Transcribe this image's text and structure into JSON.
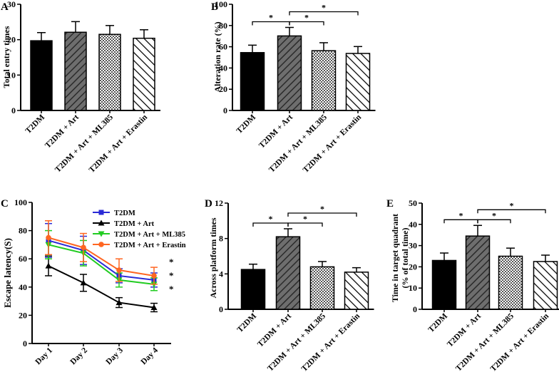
{
  "panels": [
    {
      "id": "A",
      "letter": "A",
      "chart_data": {
        "type": "bar",
        "ylabel": "Total entry times",
        "ylim": [
          0,
          30
        ],
        "yticks": [
          0,
          10,
          20,
          30
        ],
        "categories": [
          "T2DM",
          "T2DM + Art",
          "T2DM + Art + ML385",
          "T2DM + Art + Erastin"
        ],
        "values": [
          19.7,
          22.1,
          21.5,
          20.4
        ],
        "errors": [
          2.3,
          3.0,
          2.5,
          2.4
        ],
        "significance": []
      }
    },
    {
      "id": "B",
      "letter": "B",
      "chart_data": {
        "type": "bar",
        "ylabel": "Alteration rate (%)",
        "ylim": [
          0,
          100
        ],
        "yticks": [
          0,
          20,
          40,
          60,
          80,
          100
        ],
        "categories": [
          "T2DM",
          "T2DM + Art",
          "T2DM + Art + ML385",
          "T2DM + Art + Erastin"
        ],
        "values": [
          54.5,
          70.2,
          56.3,
          53.7
        ],
        "errors": [
          7.0,
          8.0,
          7.5,
          6.5
        ],
        "significance": [
          {
            "from": 0,
            "to": 1,
            "label": "*",
            "level": 1
          },
          {
            "from": 1,
            "to": 2,
            "label": "*",
            "level": 1
          },
          {
            "from": 1,
            "to": 3,
            "label": "*",
            "level": 2
          }
        ]
      }
    },
    {
      "id": "C",
      "letter": "C",
      "chart_data": {
        "type": "line",
        "ylabel": "Escape latency(S)",
        "ylim": [
          0,
          100
        ],
        "yticks": [
          0,
          20,
          40,
          60,
          80,
          100
        ],
        "categories": [
          "Day 1",
          "Day 2",
          "Day 3",
          "Day 4"
        ],
        "legend_position": "top-right",
        "series": [
          {
            "name": "T2DM",
            "color": "#2a2ad6",
            "marker": "square",
            "values": [
              73,
              66,
              48,
              45
            ],
            "errors": [
              12,
              10,
              5,
              5
            ],
            "end_labels": [
              ""
            ]
          },
          {
            "name": "T2DM + Art",
            "color": "#000000",
            "marker": "triangle-up",
            "values": [
              55,
              43,
              29,
              25.5
            ],
            "errors": [
              7,
              6,
              3.5,
              3
            ],
            "end_labels": [
              ""
            ]
          },
          {
            "name": "T2DM + Art + ML385",
            "color": "#22cc22",
            "marker": "triangle-down",
            "values": [
              70,
              64,
              45,
              42
            ],
            "errors": [
              10,
              9,
              5,
              4.5
            ],
            "end_labels": [
              "*"
            ]
          },
          {
            "name": "T2DM + Art + Erastin",
            "color": "#ff6622",
            "marker": "circle",
            "values": [
              75,
              68,
              52,
              48
            ],
            "errors": [
              12,
              10,
              8,
              6
            ],
            "end_labels": [
              "*"
            ]
          }
        ],
        "end_annotations": [
          "*",
          "*",
          "*"
        ]
      }
    },
    {
      "id": "D",
      "letter": "D",
      "chart_data": {
        "type": "bar",
        "ylabel": "Across platform times",
        "ylim": [
          0,
          12
        ],
        "yticks": [
          0,
          4,
          8,
          12
        ],
        "categories": [
          "T2DM",
          "T2DM + Art",
          "T2DM + Art + ML385",
          "T2DM + Art + Erastin"
        ],
        "values": [
          4.5,
          8.2,
          4.8,
          4.2
        ],
        "errors": [
          0.6,
          0.9,
          0.6,
          0.5
        ],
        "significance": [
          {
            "from": 0,
            "to": 1,
            "label": "*",
            "level": 1
          },
          {
            "from": 1,
            "to": 2,
            "label": "*",
            "level": 1
          },
          {
            "from": 1,
            "to": 3,
            "label": "*",
            "level": 2
          }
        ]
      }
    },
    {
      "id": "E",
      "letter": "E",
      "chart_data": {
        "type": "bar",
        "ylabel": "Time in target quadrant",
        "ylabel2": "(% of total time)",
        "ylim": [
          0,
          50
        ],
        "yticks": [
          0,
          10,
          20,
          30,
          40,
          50
        ],
        "categories": [
          "T2DM",
          "T2DM + Art",
          "T2DM + Art + ML385",
          "T2DM + Art + Erastin"
        ],
        "values": [
          23,
          34.5,
          25,
          22.5
        ],
        "errors": [
          3.5,
          5,
          3.8,
          3
        ],
        "significance": [
          {
            "from": 0,
            "to": 1,
            "label": "*",
            "level": 1
          },
          {
            "from": 1,
            "to": 2,
            "label": "*",
            "level": 1
          },
          {
            "from": 1,
            "to": 3,
            "label": "*",
            "level": 2
          }
        ]
      }
    }
  ]
}
